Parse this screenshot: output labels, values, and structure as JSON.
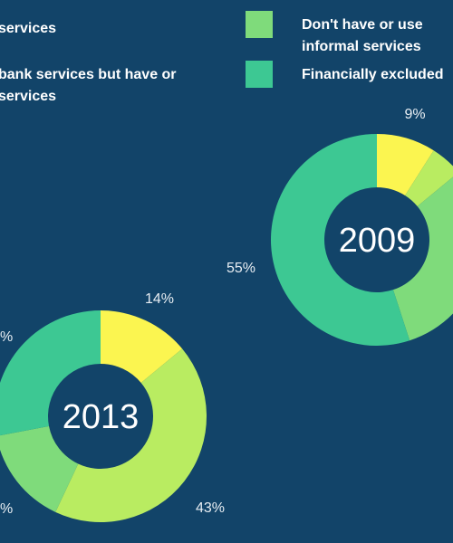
{
  "legend": {
    "left_item_1": "services",
    "left_item_2_line1": "bank services but have or",
    "left_item_2_line2": "services",
    "right_item_1_line1": "Don't have or use",
    "right_item_1_line2": "informal services",
    "right_item_2": "Financially excluded"
  },
  "colors": {
    "background": "#124469",
    "formal_only": "#fbf550",
    "formal_and_informal": "#b9ec61",
    "informal_only": "#7fdb7b",
    "excluded": "#3dc893"
  },
  "chart_data": [
    {
      "type": "pie",
      "title": "2009",
      "slices": [
        {
          "label": "9%",
          "value": 9
        },
        {
          "label": "",
          "value": 5
        },
        {
          "label": "",
          "value": 31
        },
        {
          "label": "55%",
          "value": 55
        }
      ]
    },
    {
      "type": "pie",
      "title": "2013",
      "slices": [
        {
          "label": "14%",
          "value": 14
        },
        {
          "label": "43%",
          "value": 43
        },
        {
          "label": "",
          "value": 15
        },
        {
          "label": "",
          "value": 28
        }
      ]
    }
  ]
}
